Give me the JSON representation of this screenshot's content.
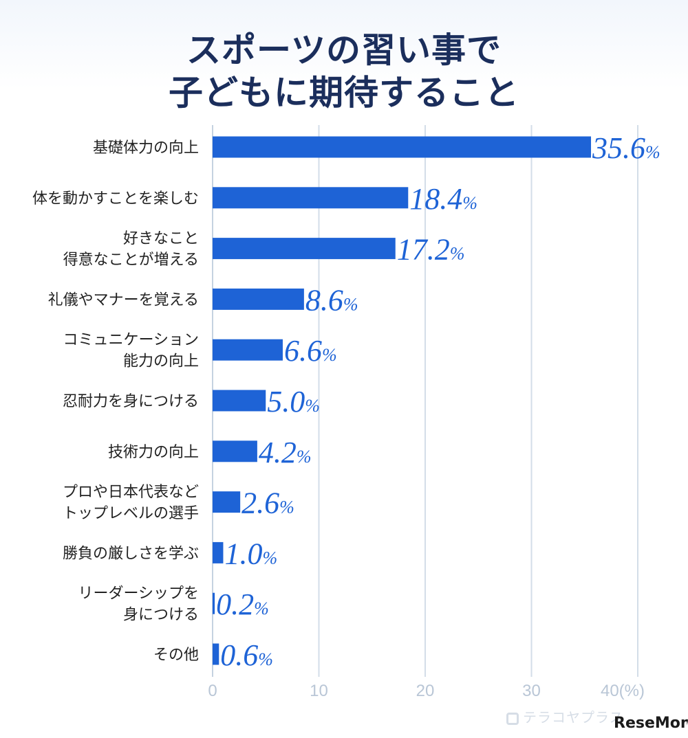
{
  "title_lines": [
    "スポーツの習い事で",
    "子どもに期待すること"
  ],
  "watermark": "テラコヤプラス",
  "brand": "ReseMom",
  "chart_data": {
    "type": "bar",
    "orientation": "horizontal",
    "title": "スポーツの習い事で子どもに期待すること",
    "categories": [
      [
        "基礎体力の向上"
      ],
      [
        "体を動かすことを楽しむ"
      ],
      [
        "好きなこと",
        "得意なことが増える"
      ],
      [
        "礼儀やマナーを覚える"
      ],
      [
        "コミュニケーション",
        "能力の向上"
      ],
      [
        "忍耐力を身につける"
      ],
      [
        "技術力の向上"
      ],
      [
        "プロや日本代表など",
        "トップレベルの選手"
      ],
      [
        "勝負の厳しさを学ぶ"
      ],
      [
        "リーダーシップを",
        "身につける"
      ],
      [
        "その他"
      ]
    ],
    "values": [
      35.6,
      18.4,
      17.2,
      8.6,
      6.6,
      5.0,
      4.2,
      2.6,
      1.0,
      0.2,
      0.6
    ],
    "value_labels": [
      "35.6",
      "18.4",
      "17.2",
      "8.6",
      "6.6",
      "5.0",
      "4.2",
      "2.6",
      "1.0",
      "0.2",
      "0.6"
    ],
    "value_suffix": "%",
    "xlim": [
      0,
      40
    ],
    "xticks": [
      0,
      10,
      20,
      30,
      40
    ],
    "xtick_labels": [
      "0",
      "10",
      "20",
      "30",
      "40(%)"
    ],
    "grid": true,
    "bar_color": "#1e63d6",
    "grid_color": "#d3dde8"
  }
}
